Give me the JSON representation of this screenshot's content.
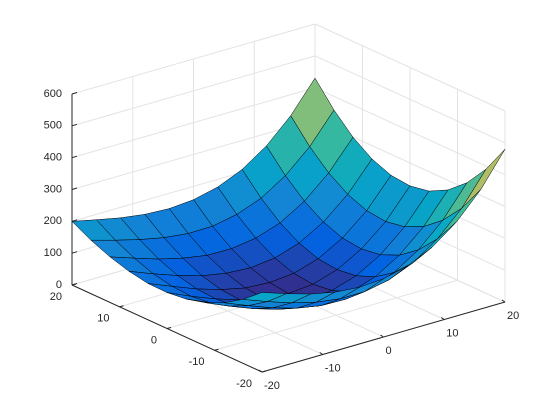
{
  "chart_data": {
    "type": "surface",
    "x": [
      -20,
      -16,
      -12,
      -8,
      -4,
      0,
      4,
      8,
      12,
      16,
      20
    ],
    "y": [
      -20,
      -16,
      -12,
      -8,
      -4,
      0,
      4,
      8,
      12,
      16,
      20
    ],
    "z": [
      [
        250,
        224,
        201,
        185,
        178,
        183,
        202,
        238,
        295,
        375,
        480
      ],
      [
        201,
        172,
        146,
        126,
        115,
        115,
        130,
        162,
        215,
        289,
        390
      ],
      [
        163,
        132,
        103,
        80,
        66,
        64,
        76,
        104,
        153,
        224,
        320
      ],
      [
        136,
        103,
        73,
        49,
        33,
        28,
        37,
        63,
        109,
        177,
        270
      ],
      [
        120,
        86,
        55,
        30,
        13,
        7,
        15,
        39,
        83,
        149,
        239
      ],
      [
        113,
        79,
        49,
        24,
        6,
        0,
        7,
        31,
        74,
        138,
        228
      ],
      [
        114,
        83,
        53,
        29,
        12,
        7,
        14,
        38,
        81,
        145,
        234
      ],
      [
        125,
        95,
        68,
        45,
        31,
        26,
        35,
        60,
        104,
        169,
        258
      ],
      [
        143,
        117,
        92,
        73,
        60,
        59,
        70,
        96,
        142,
        209,
        299
      ],
      [
        168,
        146,
        126,
        110,
        101,
        102,
        117,
        146,
        195,
        264,
        357
      ],
      [
        200,
        183,
        167,
        156,
        152,
        158,
        176,
        209,
        261,
        334,
        430
      ]
    ],
    "xlim": [
      -20,
      20
    ],
    "ylim": [
      -20,
      20
    ],
    "zlim": [
      0,
      600
    ],
    "xticks": [
      -20,
      -10,
      0,
      10,
      20
    ],
    "yticks": [
      -20,
      -10,
      0,
      10,
      20
    ],
    "zticks": [
      0,
      100,
      200,
      300,
      400,
      500,
      600
    ],
    "grid": true,
    "colormap": "parula",
    "edge_color": "#000000"
  }
}
